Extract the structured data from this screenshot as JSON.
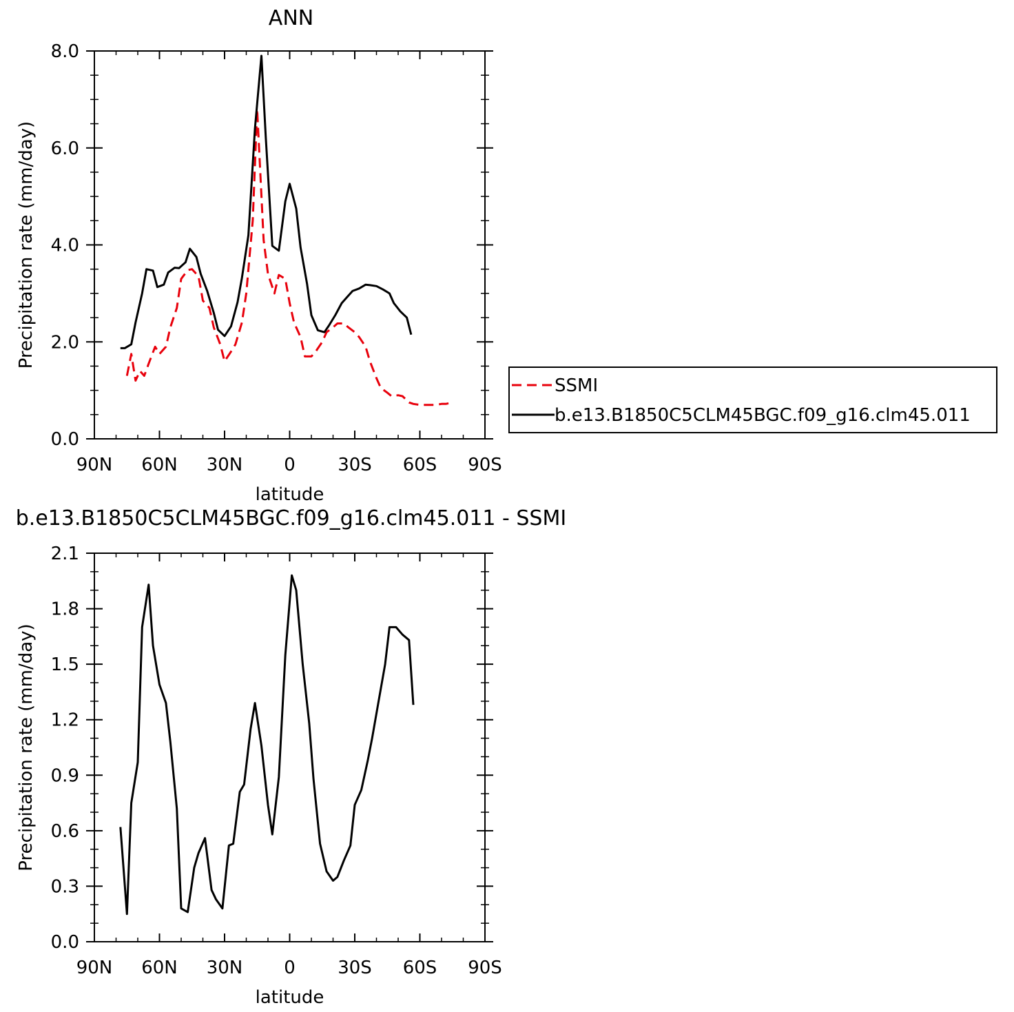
{
  "chart_data": [
    {
      "type": "line",
      "title": "ANN",
      "xlabel": "latitude",
      "ylabel": "Precipitation rate (mm/day)",
      "xlim": [
        -90,
        90
      ],
      "ylim": [
        0,
        8
      ],
      "x_direction": "north-to-south",
      "xticks": [
        {
          "value": -90,
          "label": "90N"
        },
        {
          "value": -60,
          "label": "60N"
        },
        {
          "value": -30,
          "label": "30N"
        },
        {
          "value": 0,
          "label": "0"
        },
        {
          "value": 30,
          "label": "30S"
        },
        {
          "value": 60,
          "label": "60S"
        },
        {
          "value": 90,
          "label": "90S"
        }
      ],
      "yticks": [
        {
          "value": 0,
          "label": "0.0"
        },
        {
          "value": 2,
          "label": "2.0"
        },
        {
          "value": 4,
          "label": "4.0"
        },
        {
          "value": 6,
          "label": "6.0"
        },
        {
          "value": 8,
          "label": "8.0"
        }
      ],
      "legend": {
        "placement": "right"
      },
      "series": [
        {
          "name": "SSMI",
          "color": "#e8000b",
          "dash": "dashed",
          "x": [
            -75,
            -73,
            -71,
            -69,
            -67,
            -65,
            -62,
            -60,
            -57,
            -55,
            -52,
            -50,
            -47,
            -45,
            -42,
            -40,
            -37,
            -35,
            -32,
            -30,
            -27,
            -25,
            -22,
            -20,
            -17,
            -15,
            -12,
            -10,
            -7,
            -5,
            -2,
            0,
            2,
            5,
            7,
            10,
            12,
            15,
            17,
            20,
            22,
            25,
            27,
            30,
            32,
            35,
            37,
            40,
            42,
            45,
            47,
            50,
            52,
            55,
            57,
            60,
            62,
            65,
            67,
            70,
            72,
            75
          ],
          "values": [
            1.3,
            1.75,
            1.2,
            1.4,
            1.3,
            1.55,
            1.9,
            1.75,
            1.9,
            2.3,
            2.7,
            3.3,
            3.48,
            3.5,
            3.35,
            2.85,
            2.7,
            2.3,
            1.95,
            1.6,
            1.8,
            1.95,
            2.4,
            3.0,
            4.5,
            6.8,
            4.1,
            3.4,
            3.0,
            3.38,
            3.3,
            2.8,
            2.4,
            2.1,
            1.7,
            1.7,
            1.8,
            2.0,
            2.2,
            2.3,
            2.38,
            2.38,
            2.3,
            2.2,
            2.1,
            1.9,
            1.6,
            1.25,
            1.05,
            0.95,
            0.88,
            0.9,
            0.88,
            0.75,
            0.72,
            0.7,
            0.7,
            0.7,
            0.7,
            0.72,
            0.72,
            0.75
          ]
        },
        {
          "name": "b.e13.B1850C5CLM45BGC.f09_g16.clm45.011",
          "color": "#000000",
          "dash": "solid",
          "x": [
            -78,
            -76,
            -73,
            -71,
            -68,
            -66,
            -63,
            -61,
            -58,
            -56,
            -53,
            -51,
            -48,
            -46,
            -43,
            -41,
            -38,
            -35,
            -33,
            -30,
            -27,
            -24,
            -22,
            -19,
            -16,
            -13,
            -11,
            -8,
            -5,
            -2,
            0,
            3,
            5,
            8,
            10,
            13,
            16,
            18,
            21,
            24,
            26,
            29,
            32,
            35,
            37,
            40,
            43,
            46,
            48,
            51,
            54,
            56,
            59,
            62,
            64,
            66
          ],
          "values": [
            1.87,
            1.87,
            1.95,
            2.4,
            3.0,
            3.5,
            3.47,
            3.13,
            3.18,
            3.43,
            3.53,
            3.52,
            3.64,
            3.92,
            3.75,
            3.4,
            3.05,
            2.6,
            2.25,
            2.12,
            2.32,
            2.82,
            3.32,
            4.2,
            6.4,
            7.9,
            6.2,
            3.98,
            3.88,
            4.9,
            5.26,
            4.75,
            3.95,
            3.2,
            2.55,
            2.24,
            2.2,
            2.33,
            2.55,
            2.8,
            2.9,
            3.05,
            3.1,
            3.18,
            3.17,
            3.15,
            3.08,
            3.0,
            2.8,
            2.63,
            2.5,
            2.15,
            null,
            null,
            null,
            null
          ]
        }
      ]
    },
    {
      "type": "line",
      "title": "b.e13.B1850C5CLM45BGC.f09_g16.clm45.011 - SSMI",
      "xlabel": "latitude",
      "ylabel": "Precipitation rate (mm/day)",
      "xlim": [
        -90,
        90
      ],
      "ylim": [
        0,
        2.1
      ],
      "x_direction": "north-to-south",
      "xticks": [
        {
          "value": -90,
          "label": "90N"
        },
        {
          "value": -60,
          "label": "60N"
        },
        {
          "value": -30,
          "label": "30N"
        },
        {
          "value": 0,
          "label": "0"
        },
        {
          "value": 30,
          "label": "30S"
        },
        {
          "value": 60,
          "label": "60S"
        },
        {
          "value": 90,
          "label": "90S"
        }
      ],
      "yticks": [
        {
          "value": 0,
          "label": "0.0"
        },
        {
          "value": 0.3,
          "label": "0.3"
        },
        {
          "value": 0.6,
          "label": "0.6"
        },
        {
          "value": 0.9,
          "label": "0.9"
        },
        {
          "value": 1.2,
          "label": "1.2"
        },
        {
          "value": 1.5,
          "label": "1.5"
        },
        {
          "value": 1.8,
          "label": "1.8"
        },
        {
          "value": 2.1,
          "label": "2.1"
        }
      ],
      "series": [
        {
          "color": "#000000",
          "dash": "solid",
          "x": [
            -78,
            -75,
            -73,
            -70,
            -68,
            -65,
            -63,
            -60,
            -57,
            -55,
            -52,
            -50,
            -47,
            -44,
            -42,
            -39,
            -36,
            -34,
            -31,
            -28,
            -26,
            -23,
            -21,
            -18,
            -16,
            -13,
            -10,
            -8,
            -5,
            -2,
            1,
            3,
            6,
            9,
            11,
            14,
            17,
            20,
            22,
            25,
            28,
            30,
            33,
            36,
            38,
            41,
            44,
            46,
            49,
            52,
            55,
            57,
            60,
            63,
            65
          ],
          "values": [
            0.62,
            0.15,
            0.75,
            0.97,
            1.7,
            1.93,
            1.6,
            1.39,
            1.29,
            1.08,
            0.72,
            0.18,
            0.16,
            0.4,
            0.48,
            0.56,
            0.28,
            0.23,
            0.18,
            0.52,
            0.53,
            0.81,
            0.85,
            1.15,
            1.29,
            1.06,
            0.74,
            0.58,
            0.89,
            1.55,
            1.98,
            1.9,
            1.5,
            1.18,
            0.88,
            0.53,
            0.38,
            0.33,
            0.35,
            0.44,
            0.52,
            0.74,
            0.82,
            0.98,
            1.1,
            1.3,
            1.5,
            1.7,
            1.7,
            1.66,
            1.63,
            1.28,
            null,
            null,
            null
          ]
        }
      ]
    }
  ]
}
